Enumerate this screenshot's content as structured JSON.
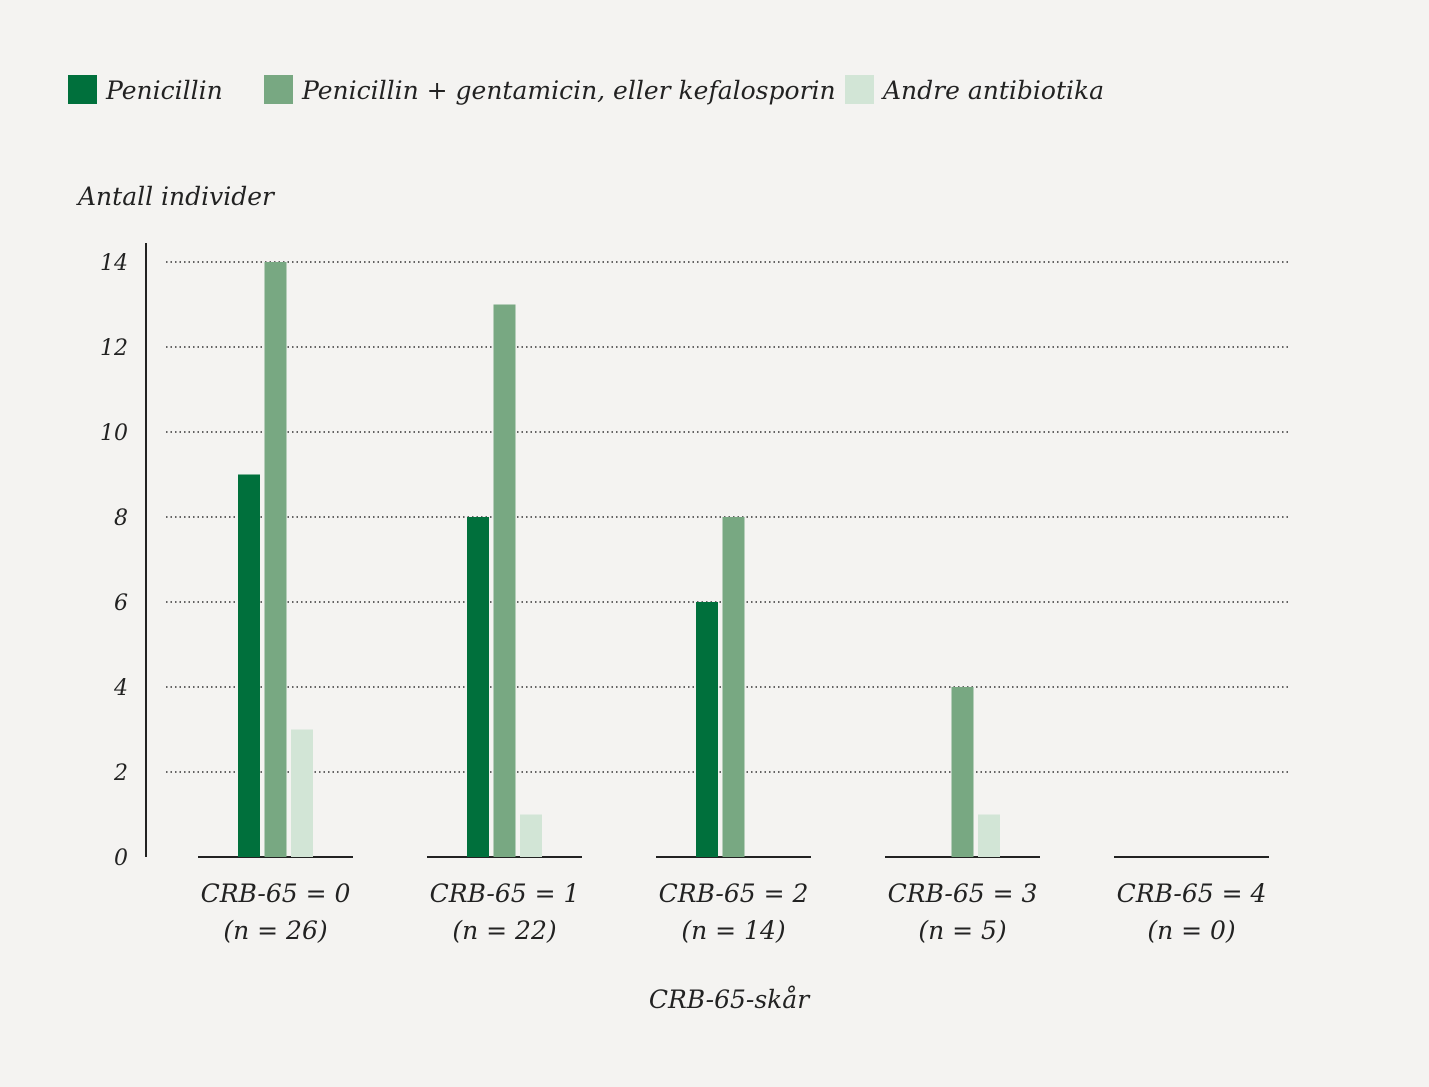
{
  "chart_data": {
    "type": "bar",
    "title": "",
    "ylabel": "Antall individer",
    "xlabel": "CRB-65-skår",
    "ylim": [
      0,
      14
    ],
    "yticks": [
      "0",
      "2",
      "4",
      "6",
      "8",
      "10",
      "12",
      "14"
    ],
    "grid": true,
    "legend_position": "top-left",
    "categories": [
      {
        "line1": "CRB-65 = 0",
        "line2": "(n = 26)"
      },
      {
        "line1": "CRB-65 = 1",
        "line2": "(n = 22)"
      },
      {
        "line1": "CRB-65 = 2",
        "line2": "(n = 14)"
      },
      {
        "line1": "CRB-65 = 3",
        "line2": "(n = 5)"
      },
      {
        "line1": "CRB-65 = 4",
        "line2": "(n = 0)"
      }
    ],
    "series": [
      {
        "name": "Penicillin",
        "color": "#00703c",
        "values": [
          9,
          8,
          6,
          0,
          0
        ]
      },
      {
        "name": "Penicillin + gentamicin, eller kefalosporin",
        "color": "#78a882",
        "values": [
          14,
          13,
          8,
          4,
          0
        ]
      },
      {
        "name": "Andre antibiotika",
        "color": "#d2e5d6",
        "values": [
          3,
          1,
          0,
          1,
          0
        ]
      }
    ]
  }
}
